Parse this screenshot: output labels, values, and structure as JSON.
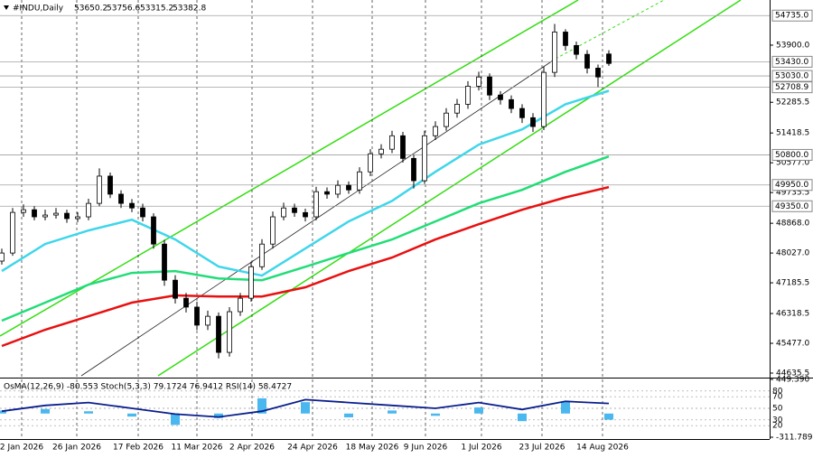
{
  "header": {
    "symbol": "#INDU,Daily",
    "ohlc": [
      53650.2,
      53756.6,
      53315.2,
      53382.8
    ]
  },
  "chart_data": [
    {
      "type": "candlestick",
      "x": [
        0,
        3,
        6,
        9,
        12,
        15,
        18,
        21,
        24,
        27,
        30,
        33,
        36,
        39,
        42,
        45,
        48,
        51,
        54,
        57,
        60,
        63,
        66,
        69,
        72,
        75,
        78,
        81,
        84,
        87,
        90,
        93,
        96,
        99,
        102,
        105,
        108,
        111,
        114,
        117,
        120,
        123,
        126,
        129,
        132,
        135,
        138,
        141,
        144,
        147,
        150,
        153,
        156,
        159,
        162,
        165,
        168
      ],
      "open": [
        47800,
        48027,
        49175,
        49250,
        49050,
        49100,
        49150,
        49000,
        49050,
        49430,
        50200,
        49690,
        49430,
        49300,
        49050,
        48280,
        47260,
        46750,
        46500,
        45990,
        46240,
        45220,
        46370,
        46750,
        47640,
        48280,
        49050,
        49300,
        49170,
        49050,
        49760,
        49690,
        49940,
        49810,
        50320,
        50830,
        50960,
        51340,
        50700,
        50070,
        51340,
        51600,
        51980,
        52230,
        52740,
        53000,
        52490,
        52360,
        52110,
        51850,
        51600,
        53130,
        54270,
        53890,
        53640,
        53250,
        53650.2
      ],
      "high": [
        48150,
        49300,
        49400,
        49350,
        49250,
        49300,
        49250,
        49180,
        49560,
        50420,
        50300,
        49800,
        49550,
        49420,
        49150,
        48400,
        47400,
        46900,
        46650,
        46400,
        46350,
        46500,
        46900,
        47780,
        48420,
        49200,
        49450,
        49420,
        49280,
        49900,
        49880,
        50080,
        50050,
        50450,
        50960,
        51100,
        51480,
        51450,
        50800,
        51480,
        51750,
        52120,
        52380,
        52880,
        53150,
        53100,
        52600,
        52480,
        52230,
        51980,
        53300,
        54500,
        54350,
        54000,
        53760,
        53350,
        53756.6
      ],
      "low": [
        47700,
        47950,
        49050,
        48950,
        48950,
        49000,
        48880,
        48900,
        48950,
        49350,
        49580,
        49300,
        49180,
        48920,
        48150,
        47100,
        46600,
        46350,
        45850,
        45850,
        45050,
        45100,
        46250,
        46650,
        47550,
        48150,
        48950,
        49050,
        48920,
        48950,
        49560,
        49580,
        49700,
        49700,
        50200,
        50700,
        50850,
        50580,
        49850,
        49980,
        51220,
        51480,
        51850,
        52100,
        52620,
        52350,
        52220,
        51980,
        51700,
        51450,
        51500,
        53000,
        53750,
        53500,
        53100,
        52720,
        53315.2
      ],
      "close": [
        48027,
        49175,
        49250,
        49050,
        49100,
        49150,
        49000,
        49050,
        49430,
        50200,
        49690,
        49430,
        49300,
        49050,
        48280,
        47260,
        46750,
        46500,
        45990,
        46240,
        45220,
        46370,
        46750,
        47640,
        48280,
        49050,
        49300,
        49170,
        49050,
        49760,
        49690,
        49940,
        49810,
        50320,
        50830,
        50960,
        51340,
        50700,
        50070,
        51340,
        51600,
        51980,
        52230,
        52740,
        53000,
        52490,
        52360,
        52110,
        51850,
        51600,
        53130,
        54270,
        53890,
        53640,
        53250,
        53000,
        53382.8
      ],
      "series": [
        {
          "color": "#3fd6ea",
          "x": [
            0,
            12,
            24,
            36,
            48,
            60,
            72,
            84,
            96,
            108,
            120,
            132,
            144,
            156,
            168
          ],
          "values": [
            47517,
            48282,
            48665,
            48970,
            48410,
            47645,
            47390,
            48155,
            48920,
            49500,
            50320,
            51090,
            51520,
            52230,
            52610
          ]
        },
        {
          "color": "#22dd77",
          "x": [
            0,
            12,
            24,
            36,
            48,
            60,
            72,
            84,
            96,
            108,
            120,
            132,
            144,
            156,
            168
          ],
          "values": [
            46115,
            46625,
            47135,
            47465,
            47517,
            47310,
            47260,
            47640,
            48027,
            48410,
            48920,
            49430,
            49810,
            50320,
            50755
          ]
        },
        {
          "color": "#e81010",
          "x": [
            0,
            12,
            24,
            36,
            48,
            60,
            72,
            84,
            96,
            108,
            120,
            132,
            144,
            156,
            168
          ],
          "values": [
            45400,
            45860,
            46240,
            46625,
            46830,
            46800,
            46800,
            47060,
            47517,
            47900,
            48410,
            48840,
            49250,
            49600,
            49890
          ]
        }
      ],
      "levels": [
        {
          "value": 54735,
          "label": "54735.0"
        },
        {
          "value": 53430,
          "label": "53430.0"
        },
        {
          "value": 53030,
          "label": "53030.0"
        },
        {
          "value": 52708.9,
          "label": "52708.9"
        },
        {
          "value": 50800,
          "label": "50800.0"
        },
        {
          "value": 49950,
          "label": "49950.0"
        },
        {
          "value": 49350,
          "label": "49350.0"
        }
      ],
      "xlim": [
        -0.5,
        212.5
      ],
      "xticks": [
        {
          "value": 5.5,
          "label": "2 Jan 2026"
        },
        {
          "value": 20.75,
          "label": "26 Jan 2026"
        },
        {
          "value": 37.75,
          "label": "17 Feb 2026"
        },
        {
          "value": 54,
          "label": "11 Mar 2026"
        },
        {
          "value": 69.25,
          "label": "2 Apr 2026"
        },
        {
          "value": 86,
          "label": "24 Apr 2026"
        },
        {
          "value": 102.5,
          "label": "18 May 2026"
        },
        {
          "value": 117.25,
          "label": "9 Jun 2026"
        },
        {
          "value": 132.75,
          "label": "1 Jul 2026"
        },
        {
          "value": 149.5,
          "label": "23 Jul 2026"
        },
        {
          "value": 166.25,
          "label": "14 Aug 2026"
        }
      ],
      "ylim": [
        44559,
        55124
      ],
      "yticks": [
        {
          "value": 53900,
          "label": "53900.0"
        },
        {
          "value": 52285.5,
          "label": "52285.5"
        },
        {
          "value": 51418.5,
          "label": "51418.5"
        },
        {
          "value": 50577,
          "label": "50577.0"
        },
        {
          "value": 49735.5,
          "label": "49735.5"
        },
        {
          "value": 48868,
          "label": "48868.0"
        },
        {
          "value": 48027,
          "label": "48027.0"
        },
        {
          "value": 47185.5,
          "label": "47185.5"
        },
        {
          "value": 46318.5,
          "label": "46318.5"
        },
        {
          "value": 45477,
          "label": "45477.0"
        },
        {
          "value": 44635.5,
          "label": "44635.5"
        }
      ]
    },
    {
      "type": "bar",
      "title": "OsMA(12,26,9) -80.553 Stoch(5,3,3) 79.1724 76.9412 RSI(14) 58.4727",
      "x": [
        0,
        12,
        24,
        36,
        48,
        60,
        72,
        84,
        96,
        108,
        120,
        132,
        144,
        156,
        168
      ],
      "series": [
        {
          "color": "#4ab8ee",
          "values": [
            40,
            60,
            30,
            -40,
            -150,
            -60,
            200,
            150,
            -50,
            40,
            -30,
            80,
            -100,
            150,
            -80.553
          ]
        },
        {
          "color": "#0a1e8c",
          "type": "line",
          "axis": "y2",
          "values": [
            45,
            55,
            60,
            50,
            40,
            35,
            45,
            65,
            60,
            55,
            50,
            60,
            48,
            62,
            58.4727
          ]
        }
      ],
      "xlim": [
        -0.5,
        212.5
      ],
      "ylim": [
        -311.789,
        449.39
      ],
      "yticks": [
        {
          "value": 449.39,
          "label": "449.390"
        },
        {
          "value": -311.789,
          "label": "-311.789"
        }
      ],
      "y2lim": [
        0,
        100
      ],
      "y2ticks": [
        80,
        70,
        50,
        30,
        20
      ]
    }
  ]
}
